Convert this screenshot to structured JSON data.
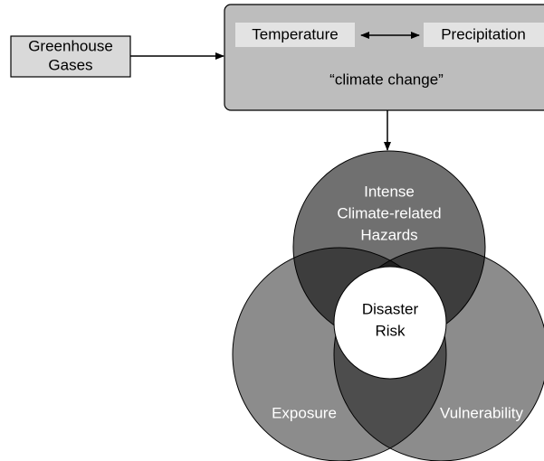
{
  "source": {
    "lines": [
      "Greenhouse",
      "Gases"
    ]
  },
  "climate": {
    "label": "“climate change”",
    "left": "Temperature",
    "right": "Precipitation"
  },
  "venn": {
    "top": {
      "lines": [
        "Intense",
        "Climate-related",
        "Hazards"
      ]
    },
    "left": {
      "label": "Exposure"
    },
    "right": {
      "label": "Vulnerability"
    },
    "center": {
      "lines": [
        "Disaster",
        "Risk"
      ]
    }
  }
}
